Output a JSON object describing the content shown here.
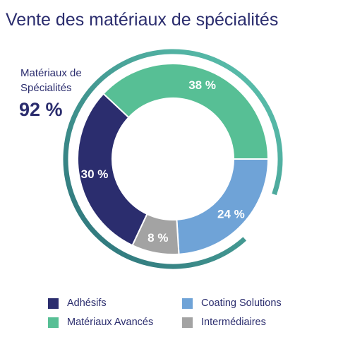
{
  "chart_data": {
    "type": "pie",
    "title": "Vente des matériaux de spécialités",
    "slices": [
      {
        "label": "Coating Solutions",
        "value": 24,
        "value_label": "24 %",
        "color": "#6fa3d7"
      },
      {
        "label": "Intermédiaires",
        "value": 8,
        "value_label": "8 %",
        "color": "#a3a3a3"
      },
      {
        "label": "Adhésifs",
        "value": 30,
        "value_label": "30 %",
        "color": "#2b2d6e"
      },
      {
        "label": "Matériaux Avancés",
        "value": 38,
        "value_label": "38 %",
        "color": "#57bf95"
      }
    ],
    "bracket": {
      "label_line1": "Matériaux de",
      "label_line2": "Spécialités",
      "value_label": "92 %",
      "value": 92,
      "color_start": "#2b6f77",
      "color_end": "#5ec7b0"
    },
    "legend": [
      {
        "label": "Adhésifs",
        "color": "#2b2d6e"
      },
      {
        "label": "Coating Solutions",
        "color": "#6fa3d7"
      },
      {
        "label": "Matériaux Avancés",
        "color": "#57bf95"
      },
      {
        "label": "Intermédiaires",
        "color": "#a3a3a3"
      }
    ]
  }
}
